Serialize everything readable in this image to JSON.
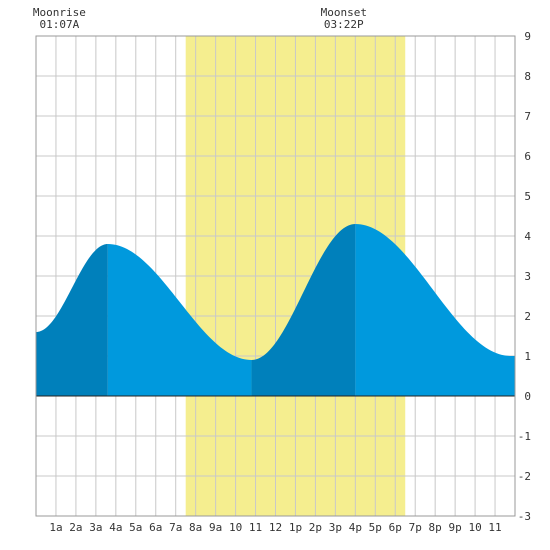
{
  "chart_data": {
    "type": "area",
    "title": "",
    "xlabel": "",
    "ylabel": "",
    "x_unit": "hour of day",
    "xlim": [
      0,
      24
    ],
    "ylim": [
      -3,
      9
    ],
    "y_ticks": [
      "-3",
      "-2",
      "-1",
      "0",
      "1",
      "2",
      "3",
      "4",
      "5",
      "6",
      "7",
      "8",
      "9"
    ],
    "x_ticks": [
      "1a",
      "2a",
      "3a",
      "4a",
      "5a",
      "6a",
      "7a",
      "8a",
      "9a",
      "10",
      "11",
      "12",
      "1p",
      "2p",
      "3p",
      "4p",
      "5p",
      "6p",
      "7p",
      "8p",
      "9p",
      "10",
      "11"
    ],
    "grid": true,
    "daylight": {
      "start_hour": 7.5,
      "end_hour": 18.5
    },
    "tide_extremes": [
      {
        "hour": 0.0,
        "height": 1.6
      },
      {
        "hour": 3.6,
        "height": 3.8
      },
      {
        "hour": 10.8,
        "height": 0.9
      },
      {
        "hour": 16.0,
        "height": 4.3
      },
      {
        "hour": 23.8,
        "height": 1.0
      }
    ],
    "annotations": [
      {
        "label": "Moonrise",
        "time": "01:07A",
        "hour": 1.12
      },
      {
        "label": "Moonset",
        "time": "03:22P",
        "hour": 15.37
      }
    ],
    "colors": {
      "water": "#0099dd",
      "water_dark": "#0080bb",
      "daylight": "#f5ee8f",
      "grid": "#c8c8c8",
      "border": "#999999"
    }
  }
}
